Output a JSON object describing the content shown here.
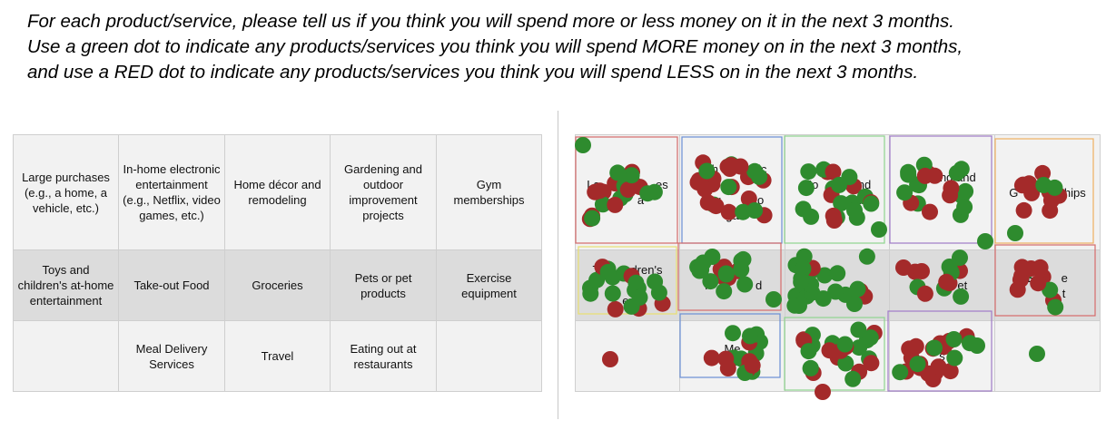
{
  "instructions": [
    "For each product/service, please tell us if you think you will spend more or less money on it in the next 3 months.",
    "Use a green dot to indicate any products/services you think you will spend MORE money on in the next 3 months,",
    "and use a RED dot to indicate any products/services you think you will spend LESS on in the next 3 months."
  ],
  "left_grid": {
    "rows": [
      [
        "Large purchases (e.g., a home, a vehicle, etc.)",
        "In-home electronic entertainment (e.g., Netflix, video games, etc.)",
        "Home décor and remodeling",
        "Gardening and outdoor improvement projects",
        "Gym memberships"
      ],
      [
        "Toys and children's at-home entertainment",
        "Take-out Food",
        "Groceries",
        "Pets or pet products",
        "Exercise equipment"
      ],
      [
        "",
        "Meal Delivery Services",
        "Travel",
        "Eating out at restaurants",
        ""
      ]
    ]
  },
  "right_grid": {
    "rows": [
      [
        "La      urch    es\n        a",
        "In-h      tronic\n\n(e.g         eo\nga",
        "Ho          and\n              d",
        "G      ing and\n        r\n              nt",
        "G           rships"
      ],
      [
        "Toy      dren's\n\ner",
        "T              d",
        "",
        "P          et",
        "E        e\n          t"
      ],
      [
        "",
        "Me\nS",
        "",
        "s",
        ""
      ]
    ]
  },
  "colors": {
    "green": "#2e8b2e",
    "red": "#a42a2a",
    "cell_light": "#f2f2f2",
    "cell_dark": "#dcdcdc"
  },
  "dot_colors": [
    "green",
    "red"
  ]
}
